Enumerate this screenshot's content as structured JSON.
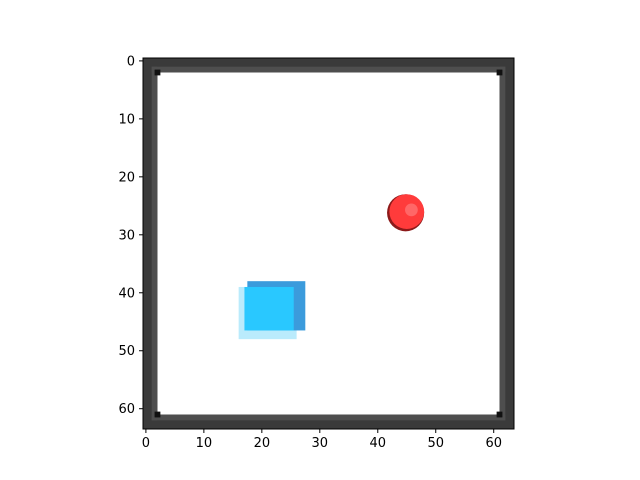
{
  "figure": {
    "type": "pixel-grid",
    "xlim": [
      0,
      63
    ],
    "ylim": [
      0,
      63
    ],
    "y_inverted": true,
    "x_ticks": [
      "0",
      "10",
      "20",
      "30",
      "40",
      "50",
      "60"
    ],
    "y_ticks": [
      "0",
      "10",
      "20",
      "30",
      "40",
      "50",
      "60"
    ]
  },
  "colors": {
    "background": "#ffffff",
    "wall_dark": "#3a3a3a",
    "wall_mid": "#4e4e4e",
    "wall_corner": "#111111",
    "player": "#29c8ff",
    "player_edge": "#3b9bdc",
    "player_glow": "#a9e6fb",
    "target": "#ff3b3b",
    "target_dark": "#8c1a1a",
    "target_highlight": "#ff7a7a"
  },
  "scene": {
    "arena": {
      "x_min": 0,
      "x_max": 63,
      "y_min": 0,
      "y_max": 63,
      "wall_thickness": 2
    },
    "player": {
      "shape": "square",
      "x_start": 17,
      "x_end": 27,
      "y_start": 39,
      "y_end": 48
    },
    "target": {
      "shape": "circle",
      "center_x": 45,
      "center_y": 26,
      "radius": 3
    }
  }
}
